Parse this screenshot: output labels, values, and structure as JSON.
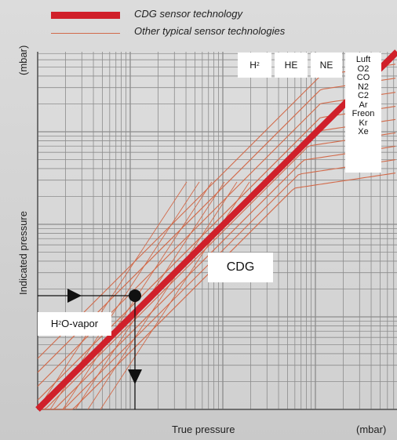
{
  "legend": {
    "cdg": "CDG sensor technology",
    "other": "Other typical sensor technologies"
  },
  "axes": {
    "ylabel": "Indicated pressure",
    "yunit": "(mbar)",
    "xlabel": "True pressure",
    "xunit": "(mbar)"
  },
  "labels": {
    "cdg": "CDG",
    "h2o_prefix": "H",
    "h2o_sub": "2",
    "h2o_suffix": "O-vapor",
    "gas_h2": "H",
    "gas_h2_sub": "2",
    "gas_he": "HE",
    "gas_ne": "NE",
    "gas_stack": [
      "Luft",
      "O2",
      "CO",
      "N2",
      "C2",
      "Ar",
      "Freon",
      "Kr",
      "Xe"
    ]
  },
  "colors": {
    "cdg_line": "#d0202a",
    "other_lines": "#d26a4a",
    "grid": "#8c8c8c",
    "marker": "#111111"
  },
  "chart_data": {
    "type": "line",
    "title": "",
    "xlabel": "True pressure",
    "ylabel": "Indicated pressure",
    "xunit": "(mbar)",
    "yunit": "(mbar)",
    "scale": "log-log",
    "grid": true,
    "legend_position": "top",
    "series": [
      {
        "name": "CDG sensor technology",
        "slope": 1.0,
        "offset": 0.0
      },
      {
        "name": "Other typical sensor technologies",
        "curves": [
          {
            "label": "H2",
            "offset": 0.55
          },
          {
            "label": "HE",
            "offset": 0.4
          },
          {
            "label": "NE",
            "offset": 0.25
          },
          {
            "label": "Luft / O2",
            "offset": 0.1
          },
          {
            "label": "CO / N2",
            "offset": 0.02
          },
          {
            "label": "C2 / Ar",
            "offset": -0.08
          },
          {
            "label": "Freon",
            "offset": -0.18
          },
          {
            "label": "Kr",
            "offset": -0.28
          },
          {
            "label": "Xe",
            "offset": -0.38
          }
        ]
      }
    ],
    "annotation": "H2O-vapor"
  }
}
